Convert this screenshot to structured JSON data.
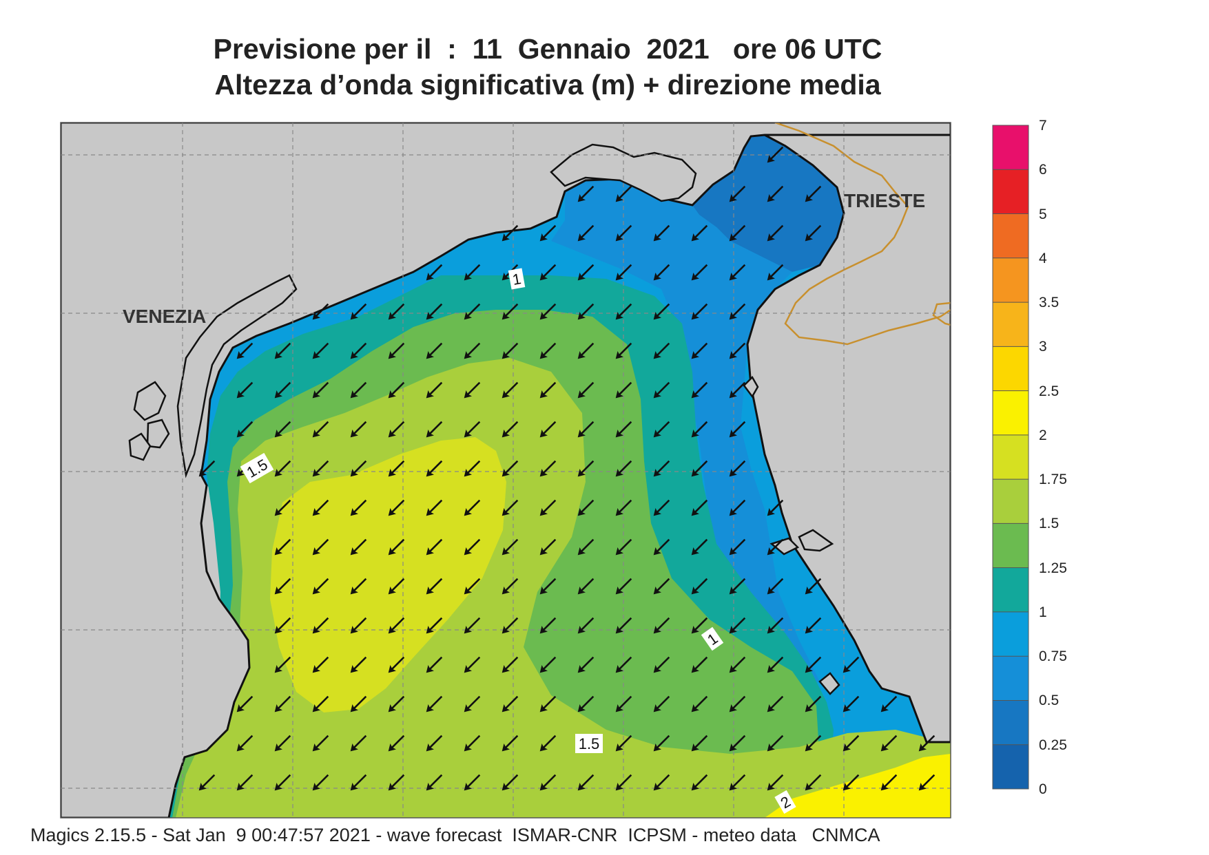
{
  "header": {
    "line1": "Previsione per il  :  11  Gennaio  2021   ore 06 UTC",
    "line2": "Altezza d’onda significativa (m) + direzione media"
  },
  "map": {
    "places": [
      {
        "name": "VENEZIA"
      },
      {
        "name": "TRIESTE"
      }
    ],
    "contour_labels": [
      "1",
      "1.5",
      "1",
      "1.5",
      "2"
    ],
    "wave_direction": "towards south-west",
    "land_color": "#c8c8c8",
    "coast_color": "#111111",
    "border_color": "#c8902e"
  },
  "colorbar": {
    "ticks": [
      "7",
      "6",
      "5",
      "4",
      "3.5",
      "3",
      "2.5",
      "2",
      "1.75",
      "1.5",
      "1.25",
      "1",
      "0.75",
      "0.5",
      "0.25",
      "0"
    ],
    "colors": [
      "#e8106b",
      "#e62025",
      "#ef6b22",
      "#f5951f",
      "#f7b41a",
      "#fcd700",
      "#faf100",
      "#d6e021",
      "#a9cf3c",
      "#6bbb50",
      "#12a89b",
      "#0a9edc",
      "#158fd8",
      "#1777c2",
      "#1563ad"
    ]
  },
  "footer": {
    "text": "Magics 2.15.5 - Sat Jan  9 00:47:57 2021 - wave forecast  ISMAR-CNR  ICPSM - meteo data   CNMCA"
  }
}
